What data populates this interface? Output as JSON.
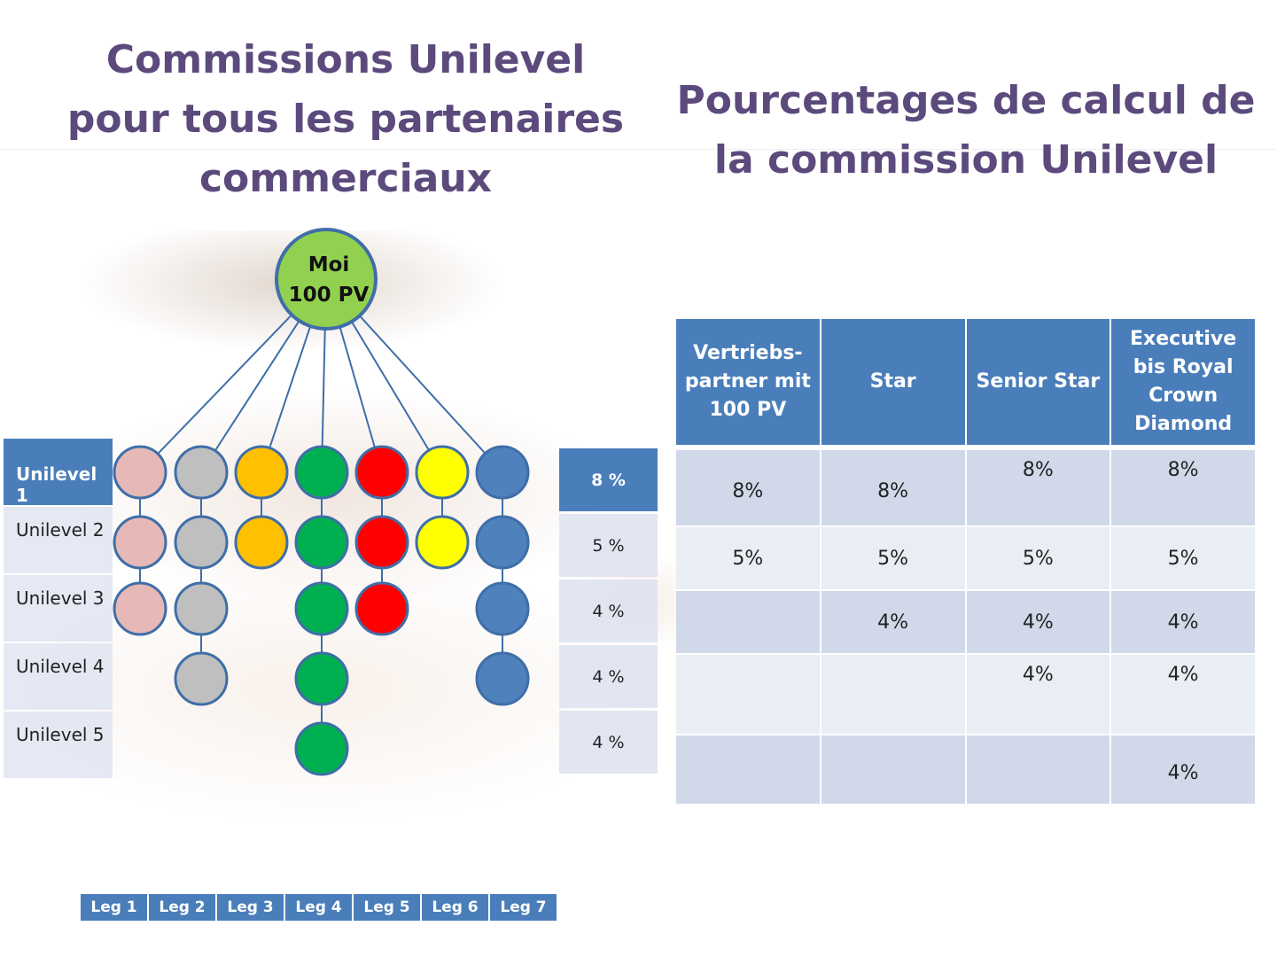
{
  "titles": {
    "left": [
      "Commissions Unilevel",
      "pour tous les partenaires",
      "commerciaux"
    ],
    "right": [
      "Pourcentages de calcul de",
      "la commission Unilevel"
    ]
  },
  "root": {
    "line1": "Moi",
    "line2": "100 PV",
    "color": "#92d050"
  },
  "levels": [
    "Unilevel 1",
    "Unilevel 2",
    "Unilevel 3",
    "Unilevel 4",
    "Unilevel 5"
  ],
  "level_percentages": [
    "8 %",
    "5 %",
    "4 %",
    "4 %",
    "4 %"
  ],
  "legs": [
    {
      "label": "Leg  1",
      "color": "#e6b8b7",
      "depth": 3
    },
    {
      "label": "Leg 2",
      "color": "#bfbfbf",
      "depth": 4
    },
    {
      "label": "Leg 3",
      "color": "#ffc000",
      "depth": 2
    },
    {
      "label": "Leg 4",
      "color": "#00b050",
      "depth": 5
    },
    {
      "label": "Leg 5",
      "color": "#ff0000",
      "depth": 3
    },
    {
      "label": "Leg 6",
      "color": "#ffff00",
      "depth": 2
    },
    {
      "label": "Leg 7",
      "color": "#4f81bd",
      "depth": 4
    }
  ],
  "colors": {
    "header_blue": "#4a7ebb",
    "title_purple": "#5c4a7d",
    "line_blue": "#3f6ea8"
  },
  "table": {
    "headers": [
      [
        "Vertriebs-",
        "partner mit",
        "100 PV"
      ],
      [
        "Star"
      ],
      [
        "Senior Star"
      ],
      [
        "Executive",
        "bis Royal",
        "Crown",
        "Diamond"
      ]
    ],
    "rows": [
      [
        "8%",
        "8%",
        "8%",
        "8%"
      ],
      [
        "5%",
        "5%",
        "5%",
        "5%"
      ],
      [
        "",
        "4%",
        "4%",
        "4%"
      ],
      [
        "",
        "",
        "4%",
        "4%"
      ],
      [
        "",
        "",
        "",
        "4%"
      ]
    ]
  }
}
